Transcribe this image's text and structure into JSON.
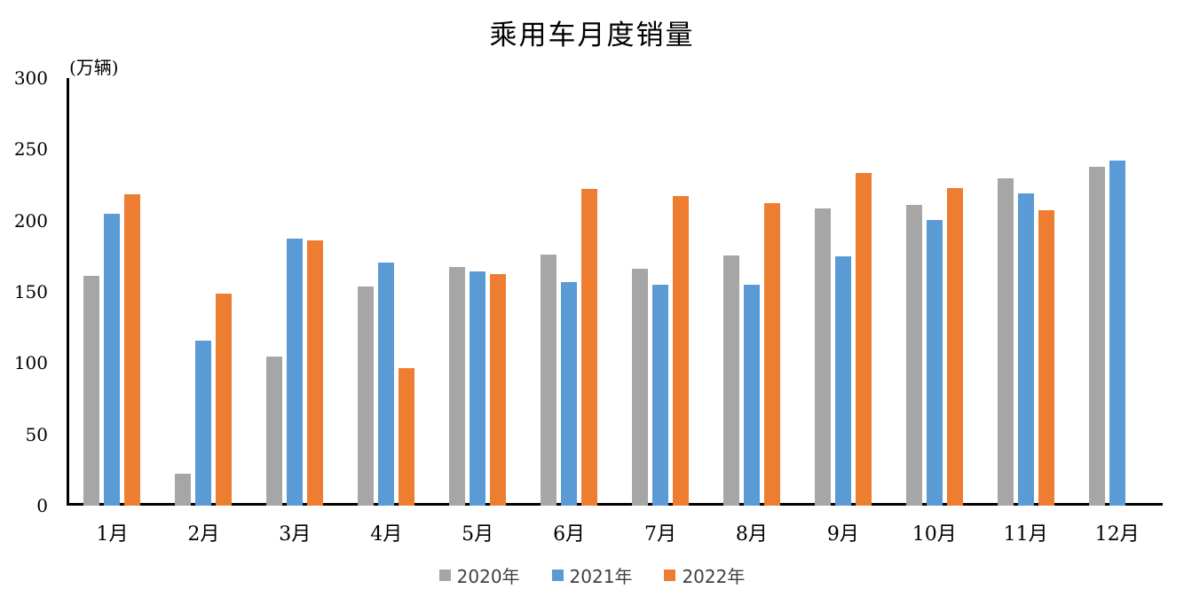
{
  "title": "乘用车月度销量",
  "axis_unit_label": "(万辆)",
  "chart_data": {
    "type": "bar",
    "title": "乘用车月度销量",
    "ylabel": "(万辆)",
    "xlabel": "",
    "ylim": [
      0,
      300
    ],
    "yticks": [
      0,
      50,
      100,
      150,
      200,
      250,
      300
    ],
    "grid": false,
    "legend_position": "bottom",
    "categories": [
      "1月",
      "2月",
      "3月",
      "4月",
      "5月",
      "6月",
      "7月",
      "8月",
      "9月",
      "10月",
      "11月",
      "12月"
    ],
    "series": [
      {
        "name": "2020年",
        "color": "#A6A6A6",
        "values": [
          161.4,
          22.4,
          104.3,
          153.6,
          167.4,
          176.4,
          166.5,
          175.5,
          208.8,
          211.0,
          229.7,
          237.5
        ]
      },
      {
        "name": "2021年",
        "color": "#5B9BD5",
        "values": [
          204.5,
          115.6,
          187.4,
          170.4,
          164.6,
          156.9,
          155.1,
          155.2,
          175.1,
          200.7,
          219.2,
          242.2
        ]
      },
      {
        "name": "2022年",
        "color": "#ED7D31",
        "values": [
          218.6,
          148.7,
          186.4,
          96.5,
          162.3,
          222.2,
          217.4,
          212.5,
          233.2,
          223.1,
          207.5,
          null
        ]
      }
    ]
  }
}
